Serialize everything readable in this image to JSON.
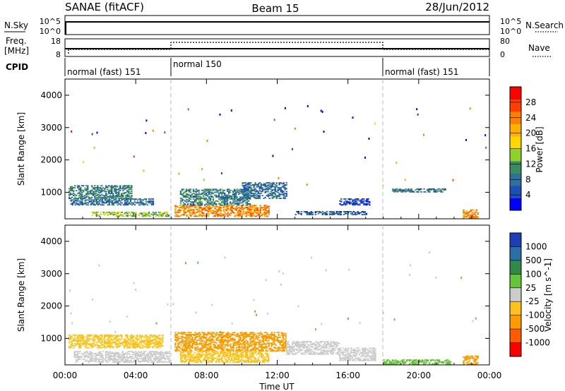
{
  "header": {
    "left": "SANAE (fitACF)",
    "center": "Beam 15",
    "right": "28/Jun/2012"
  },
  "top_panels": {
    "nsky_label": "N.Sky",
    "nsky_ticks": [
      "10^5",
      "10^0"
    ],
    "nsearch_label": "N.Search",
    "freq_label": "Freq.",
    "freq_unit": "[MHz]",
    "freq_ticks": [
      "18",
      "8"
    ],
    "nave_label": "Nave",
    "nave_ticks": [
      "80",
      "0"
    ],
    "cpid_label": "CPID",
    "cpid_segments": [
      {
        "text": "normal (fast) 151",
        "start_hour": 0,
        "end_hour": 6
      },
      {
        "text": "normal 150",
        "start_hour": 6,
        "end_hour": 18
      },
      {
        "text": "normal (fast) 151",
        "start_hour": 18,
        "end_hour": 24
      }
    ]
  },
  "chart_data": [
    {
      "type": "heatmap",
      "quantity": "Power",
      "ylabel": "Slant Range [km]",
      "y_ticks": [
        "1000",
        "2000",
        "3000",
        "4000"
      ],
      "ylim": [
        180,
        4500
      ],
      "xlim_hours": [
        0,
        24
      ],
      "colorbar_label": "Power [dB]",
      "colorbar_ticks": [
        "4",
        "8",
        "12",
        "16",
        "20",
        "24",
        "28"
      ],
      "colorbar_colors": [
        "#0000ff",
        "#1e4fb4",
        "#2f6f9a",
        "#3c8a64",
        "#8fd12a",
        "#ffd700",
        "#ffb000",
        "#ff8000",
        "#ff4000",
        "#ff0000"
      ],
      "regions": [
        {
          "t0": 0.2,
          "t1": 3.8,
          "r0": 800,
          "r1": 1200,
          "v": 9
        },
        {
          "t0": 0.3,
          "t1": 5.0,
          "r0": 600,
          "r1": 800,
          "v": 7
        },
        {
          "t0": 1.5,
          "t1": 5.9,
          "r0": 250,
          "r1": 400,
          "v": 13
        },
        {
          "t0": 6.2,
          "t1": 11.5,
          "r0": 250,
          "r1": 600,
          "v": 22
        },
        {
          "t0": 6.5,
          "t1": 10.5,
          "r0": 600,
          "r1": 1100,
          "v": 9
        },
        {
          "t0": 10.0,
          "t1": 12.5,
          "r0": 800,
          "r1": 1300,
          "v": 7
        },
        {
          "t0": 13.0,
          "t1": 17.0,
          "r0": 300,
          "r1": 400,
          "v": 6
        },
        {
          "t0": 15.5,
          "t1": 17.2,
          "r0": 600,
          "r1": 800,
          "v": 5
        },
        {
          "t0": 18.5,
          "t1": 21.5,
          "r0": 1000,
          "r1": 1100,
          "v": 8
        },
        {
          "t0": 22.5,
          "t1": 23.3,
          "r0": 200,
          "r1": 450,
          "v": 22
        }
      ]
    },
    {
      "type": "heatmap",
      "quantity": "Velocity",
      "ylabel": "Slant Range [km]",
      "y_ticks": [
        "1000",
        "2000",
        "3000",
        "4000"
      ],
      "ylim": [
        180,
        4500
      ],
      "xlim_hours": [
        0,
        24
      ],
      "colorbar_label": "Velocity [m s^-1]",
      "colorbar_ticks": [
        "1000",
        "500",
        "100",
        "25",
        "-25",
        "-100",
        "-500",
        "-1000"
      ],
      "colorbar_colors": [
        "#1e3fb4",
        "#2a6fa5",
        "#2f8a4a",
        "#66c43a",
        "#cccccc",
        "#ffc21a",
        "#ff9a00",
        "#ff5a00",
        "#ff0000"
      ],
      "regions": [
        {
          "t0": 0.2,
          "t1": 5.5,
          "r0": 700,
          "r1": 1100,
          "v": -60
        },
        {
          "t0": 0.5,
          "t1": 5.9,
          "r0": 250,
          "r1": 600,
          "v": 0
        },
        {
          "t0": 6.2,
          "t1": 12.5,
          "r0": 600,
          "r1": 1200,
          "v": -150
        },
        {
          "t0": 6.5,
          "t1": 11.5,
          "r0": 250,
          "r1": 600,
          "v": -80
        },
        {
          "t0": 12.5,
          "t1": 15.5,
          "r0": 500,
          "r1": 900,
          "v": 0
        },
        {
          "t0": 15.5,
          "t1": 17.5,
          "r0": 300,
          "r1": 700,
          "v": 0
        },
        {
          "t0": 18.0,
          "t1": 21.8,
          "r0": 200,
          "r1": 350,
          "v": 50
        },
        {
          "t0": 22.5,
          "t1": 23.3,
          "r0": 200,
          "r1": 450,
          "v": -300
        }
      ]
    }
  ],
  "x_axis": {
    "label": "Time UT",
    "tick_labels": [
      "00:00",
      "04:00",
      "08:00",
      "12:00",
      "16:00",
      "20:00",
      "00:00"
    ]
  }
}
